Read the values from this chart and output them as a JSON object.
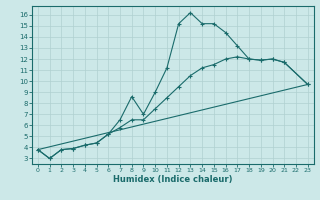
{
  "xlabel": "Humidex (Indice chaleur)",
  "bg_color": "#cce8e8",
  "line_color": "#1a6b6b",
  "grid_color": "#b0d0d0",
  "xlim": [
    -0.5,
    23.5
  ],
  "ylim": [
    2.5,
    16.8
  ],
  "line1_x": [
    0,
    1,
    2,
    3,
    4,
    5,
    6,
    7,
    8,
    9,
    10,
    11,
    12,
    13,
    14,
    15,
    16,
    17,
    18,
    19,
    20,
    21,
    23
  ],
  "line1_y": [
    3.8,
    3.0,
    3.8,
    3.9,
    4.2,
    4.4,
    5.2,
    6.5,
    8.6,
    7.0,
    9.0,
    11.2,
    15.2,
    16.2,
    15.2,
    15.2,
    14.4,
    13.2,
    12.0,
    11.9,
    12.0,
    11.7,
    9.7
  ],
  "line2_x": [
    0,
    1,
    2,
    3,
    4,
    5,
    6,
    7,
    8,
    9,
    10,
    11,
    12,
    13,
    14,
    15,
    16,
    17,
    18,
    19,
    20,
    21,
    23
  ],
  "line2_y": [
    3.8,
    3.0,
    3.8,
    3.9,
    4.2,
    4.4,
    5.2,
    5.8,
    6.5,
    6.5,
    7.5,
    8.5,
    9.5,
    10.5,
    11.2,
    11.5,
    12.0,
    12.2,
    12.0,
    11.9,
    12.0,
    11.7,
    9.7
  ],
  "line3_x": [
    0,
    23
  ],
  "line3_y": [
    3.8,
    9.7
  ],
  "yticks": [
    3,
    4,
    5,
    6,
    7,
    8,
    9,
    10,
    11,
    12,
    13,
    14,
    15,
    16
  ],
  "xticks": [
    0,
    1,
    2,
    3,
    4,
    5,
    6,
    7,
    8,
    9,
    10,
    11,
    12,
    13,
    14,
    15,
    16,
    17,
    18,
    19,
    20,
    21,
    22,
    23
  ]
}
